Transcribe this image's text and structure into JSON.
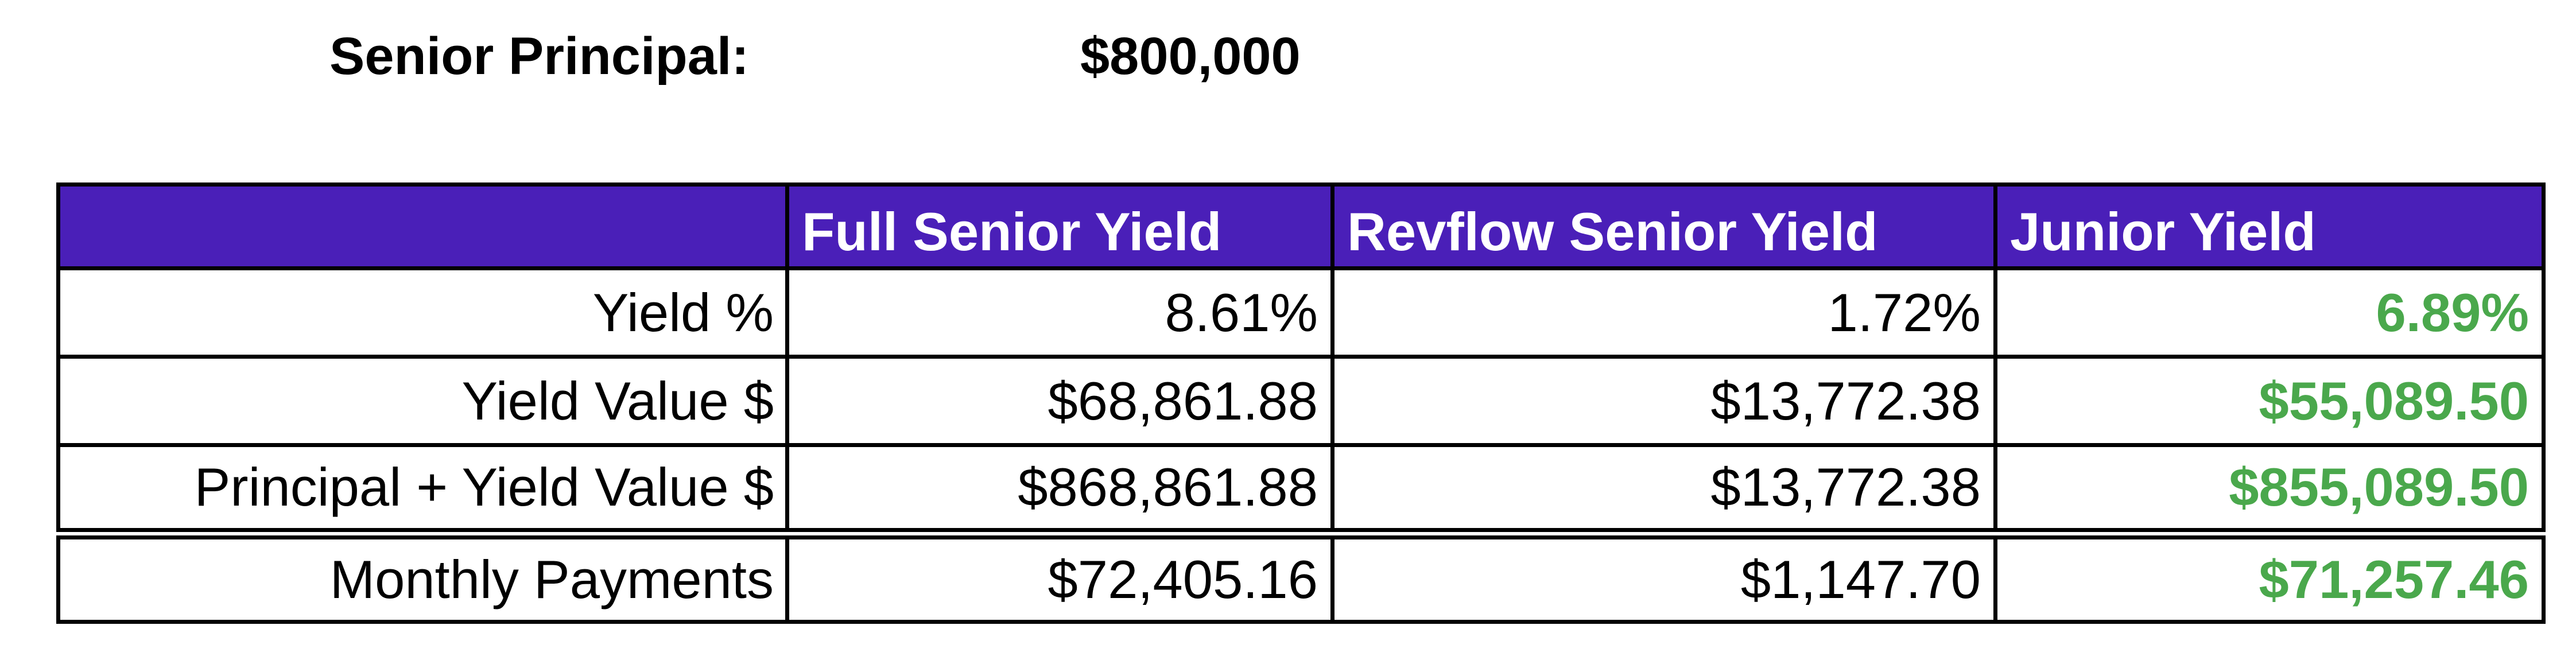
{
  "summary": {
    "label": "Senior Principal:",
    "value": "$800,000"
  },
  "table": {
    "headers": [
      "",
      "Full Senior Yield",
      "Revflow Senior Yield",
      "Junior Yield"
    ],
    "rows": [
      {
        "label": "Yield %",
        "full_senior": "8.61%",
        "revflow_senior": "1.72%",
        "junior": "6.89%"
      },
      {
        "label": "Yield Value $",
        "full_senior": "$68,861.88",
        "revflow_senior": "$13,772.38",
        "junior": "$55,089.50"
      },
      {
        "label": "Principal + Yield Value $",
        "full_senior": "$868,861.88",
        "revflow_senior": "$13,772.38",
        "junior": "$855,089.50"
      },
      {
        "label": "Monthly Payments",
        "full_senior": "$72,405.16",
        "revflow_senior": "$1,147.70",
        "junior": "$71,257.46"
      }
    ]
  },
  "colors": {
    "header_background": "#4a1fb8",
    "header_text": "#ffffff",
    "junior_text": "#4aa84c"
  }
}
